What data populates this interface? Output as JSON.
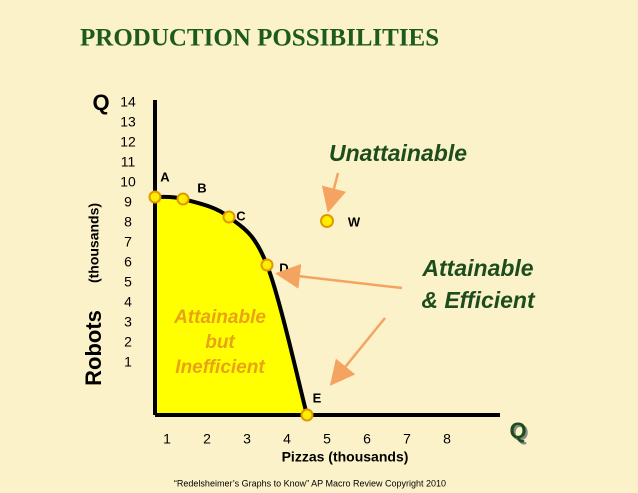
{
  "chart_data": {
    "type": "line",
    "title": "PRODUCTION POSSIBILITIES",
    "y_axis_symbol": "Q",
    "x_axis_symbol": "Q",
    "y_label": "Robots",
    "y_label_unit": "(thousands)",
    "x_label": "Pizzas (thousands)",
    "xlim": [
      0.7,
      9.325
    ],
    "ylim": [
      -1.6,
      14.15
    ],
    "xticks": [
      1,
      2,
      3,
      4,
      5,
      6,
      7,
      8
    ],
    "yticks": [
      1,
      2,
      3,
      4,
      5,
      6,
      7,
      8,
      9,
      10,
      11,
      12,
      13,
      14
    ],
    "frontier": {
      "x": [
        0.7,
        1.4,
        2.55,
        3.5,
        4.5
      ],
      "values": [
        9.3,
        9.2,
        8.3,
        5.9,
        -1.6
      ],
      "labels": [
        "A",
        "B",
        "C",
        "D",
        "E"
      ],
      "color": "#000000",
      "fill": "#ffff00",
      "marker_color": "#ffee00"
    },
    "outside_point": {
      "x": 5,
      "y": 8.1,
      "label": "W"
    },
    "annotations": {
      "unattainable": "Unattainable",
      "efficient": [
        "Attainable",
        "& Efficient"
      ],
      "inefficient": [
        "Attainable",
        "but",
        "Inefficient"
      ]
    },
    "footer": "“Redelsheimer’s Graphs to Know”  AP Macro Review Copyright 2010"
  }
}
